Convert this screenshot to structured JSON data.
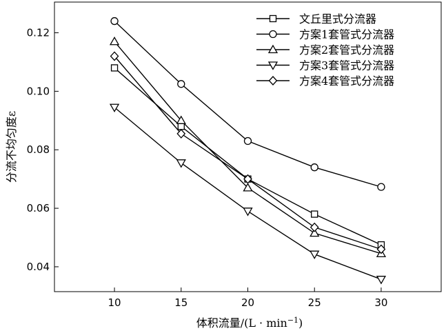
{
  "chart_data": {
    "type": "line",
    "title": "",
    "xlabel": "体积流量/(L · min",
    "xlabel_sup": "−1",
    "xlabel_end": ")",
    "ylabel": "分流不均匀度ε",
    "xlim": [
      5.5,
      34.5
    ],
    "ylim": [
      0.0315,
      0.1305
    ],
    "x": [
      10,
      15,
      20,
      25,
      30
    ],
    "x_ticks": [
      "10",
      "15",
      "20",
      "25",
      "30"
    ],
    "y_ticks": [
      "0.04",
      "0.06",
      "0.08",
      "0.10",
      "0.12"
    ],
    "y_tick_values": [
      0.04,
      0.06,
      0.08,
      0.1,
      0.12
    ],
    "grid": false,
    "legend_position": "top-right",
    "series": [
      {
        "name": "文丘里式分流器",
        "marker": "square",
        "values": [
          0.108,
          0.088,
          0.07,
          0.058,
          0.0475
        ]
      },
      {
        "name": "方案1套管式分流器",
        "marker": "circle",
        "values": [
          0.124,
          0.1025,
          0.083,
          0.074,
          0.0673
        ]
      },
      {
        "name": "方案2套管式分流器",
        "marker": "triangle-up",
        "values": [
          0.117,
          0.09,
          0.067,
          0.0515,
          0.0445
        ]
      },
      {
        "name": "方案3套管式分流器",
        "marker": "triangle-down",
        "values": [
          0.0945,
          0.0755,
          0.059,
          0.0443,
          0.0357
        ]
      },
      {
        "name": "方案4套管式分流器",
        "marker": "diamond",
        "values": [
          0.112,
          0.0855,
          0.07,
          0.0535,
          0.046
        ]
      }
    ]
  }
}
